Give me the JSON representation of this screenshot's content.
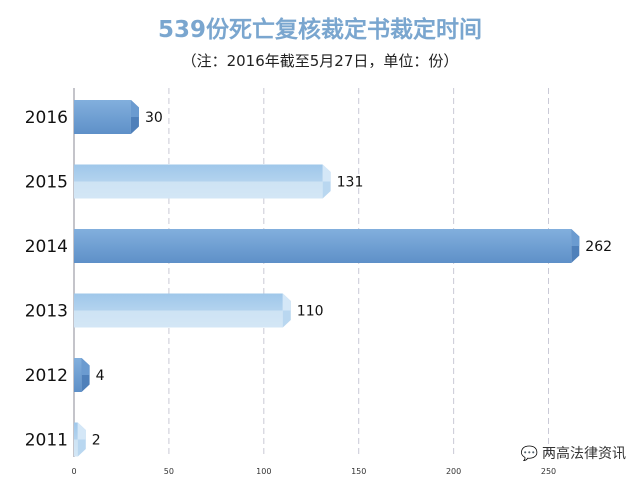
{
  "header": {
    "title": "539份死亡复核裁定书裁定时间",
    "subtitle": "（注：2016年截至5月27日，单位：份）"
  },
  "watermark": {
    "text": "两高法律资讯",
    "icon": "wechat-icon"
  },
  "colors": {
    "bar_dark": "#6e9fd3",
    "bar_light": "#a9cdec",
    "grid": "#c9c9d6"
  },
  "chart_data": {
    "type": "bar",
    "orientation": "horizontal",
    "categories": [
      "2016",
      "2015",
      "2014",
      "2013",
      "2012",
      "2011"
    ],
    "values": [
      30,
      131,
      262,
      110,
      4,
      2
    ],
    "xticks": [
      0,
      50,
      100,
      150,
      200,
      250
    ],
    "xlim": [
      0,
      265
    ],
    "grid": true
  }
}
